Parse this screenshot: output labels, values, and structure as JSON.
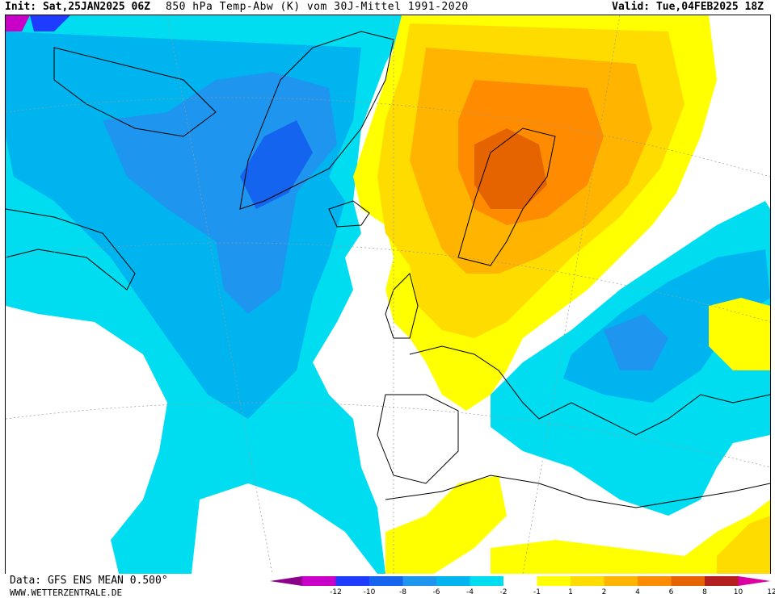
{
  "header": {
    "init": "Init: Sat,25JAN2025 06Z",
    "title": "850 hPa Temp-Abw (K) vom 30J-Mittel 1991-2020",
    "valid": "Valid: Tue,04FEB2025 18Z"
  },
  "footer": {
    "data_source": "Data: GFS ENS MEAN 0.500°",
    "website": "WWW.WETTERZENTRALE.DE"
  },
  "legend": {
    "ticks": [
      "-12",
      "-10",
      "-8",
      "-6",
      "-4",
      "-2",
      "-1",
      "1",
      "2",
      "4",
      "6",
      "8",
      "10",
      "12"
    ],
    "colors": [
      "#c800c8",
      "#1e3cff",
      "#1464f0",
      "#1e96f0",
      "#00b4f0",
      "#00dcf0",
      "#ffffff",
      "#ffff00",
      "#ffdc00",
      "#ffb400",
      "#ff8c00",
      "#e66400",
      "#b41e1e"
    ],
    "end_low": "#8c008c",
    "end_high": "#dc00a0"
  }
}
